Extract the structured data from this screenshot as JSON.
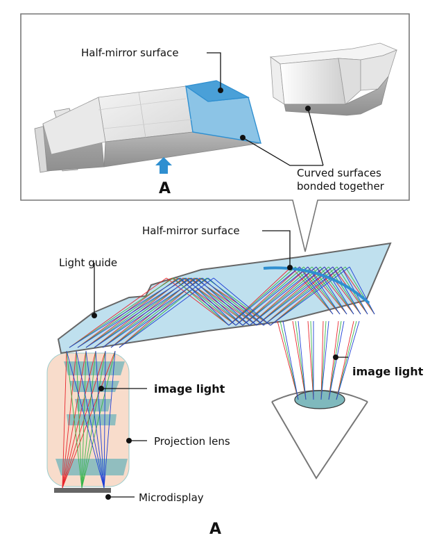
{
  "callout": {
    "half_mirror_label": "Half-mirror surface",
    "curved_label_line1": "Curved surfaces",
    "curved_label_line2": "bonded together",
    "view_letter": "A"
  },
  "main": {
    "half_mirror_label": "Half-mirror surface",
    "light_guide_label": "Light guide",
    "image_light_left": "image light",
    "image_light_right": "image light",
    "projection_lens_label": "Projection lens",
    "microdisplay_label": "Microdisplay",
    "view_letter": "A"
  },
  "colors": {
    "red": "#e8242b",
    "green": "#39b54a",
    "blue": "#1d3fd6",
    "mirror": "#2f8fd0",
    "guide_fill": "#bfe0ee",
    "lens_fill": "#f8dccb",
    "lens_element": "#7fb9bd"
  }
}
